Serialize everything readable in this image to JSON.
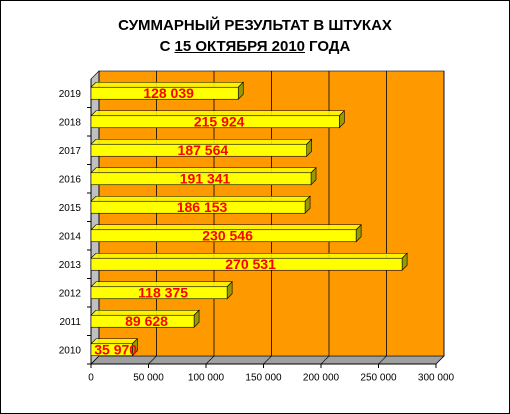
{
  "chart_data": {
    "type": "bar3d-horizontal",
    "title": "СУММАРНЫЙ РЕЗУЛЬТАТ В ШТУКАХ",
    "title_line2": [
      "С",
      "15 ОКТЯБРЯ 2010",
      "ГОДА"
    ],
    "categories": [
      "2010",
      "2011",
      "2012",
      "2013",
      "2014",
      "2015",
      "2016",
      "2017",
      "2018",
      "2019"
    ],
    "values": [
      35970,
      89628,
      118375,
      270531,
      230546,
      186153,
      191341,
      187564,
      215924,
      128039
    ],
    "value_labels": [
      "35 970",
      "89 628",
      "118 375",
      "270 531",
      "230 546",
      "186 153",
      "191 341",
      "187 564",
      "215 924",
      "128 039"
    ],
    "color": "#ffff00",
    "wall_color": "#ff9900",
    "label_color": "#ff0000",
    "xlim": [
      0,
      300000
    ],
    "xticks": [
      0,
      {
        "value": 50000,
        "label": "50 000"
      },
      {
        "value": 100000,
        "label": "100 000"
      },
      {
        "value": 150000,
        "label": "150 000"
      },
      {
        "value": 200000,
        "label": "200 000"
      },
      {
        "value": 250000,
        "label": "250 000"
      },
      {
        "value": 300000,
        "label": "300 000"
      }
    ],
    "grid": true
  }
}
